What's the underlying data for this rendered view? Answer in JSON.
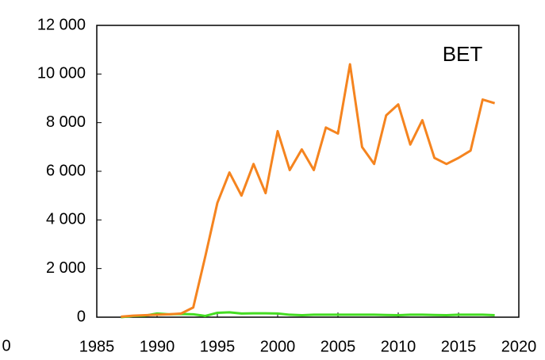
{
  "chart_data": {
    "type": "line",
    "annotation": "BET",
    "clipped_label": "0",
    "x": [
      1987,
      1988,
      1989,
      1990,
      1991,
      1992,
      1993,
      1994,
      1995,
      1996,
      1997,
      1998,
      1999,
      2000,
      2001,
      2002,
      2003,
      2004,
      2005,
      2006,
      2007,
      2008,
      2009,
      2010,
      2011,
      2012,
      2013,
      2014,
      2015,
      2016,
      2017,
      2018
    ],
    "series": [
      {
        "color": "#f5841f",
        "values": [
          20,
          60,
          80,
          100,
          120,
          150,
          400,
          2500,
          4700,
          5950,
          5000,
          6300,
          5100,
          7650,
          6050,
          6900,
          6050,
          7800,
          7550,
          10400,
          7000,
          6300,
          8300,
          8750,
          7100,
          8100,
          6550,
          6300,
          6550,
          6850,
          8950,
          8800
        ]
      },
      {
        "color": "#44dd22",
        "values": [
          0,
          50,
          60,
          150,
          120,
          130,
          120,
          50,
          180,
          200,
          150,
          160,
          160,
          150,
          100,
          80,
          100,
          100,
          100,
          100,
          100,
          100,
          90,
          80,
          100,
          100,
          90,
          80,
          100,
          100,
          100,
          80
        ]
      }
    ],
    "xlim": [
      1985,
      2020
    ],
    "xticks": [
      1985,
      1990,
      1995,
      2000,
      2005,
      2010,
      2015,
      2020
    ],
    "ylim": [
      0,
      12000
    ],
    "yticks": [
      0,
      {
        "value": 2000,
        "label": "2 000"
      },
      {
        "value": 4000,
        "label": "4 000"
      },
      {
        "value": 6000,
        "label": "6 000"
      },
      {
        "value": 8000,
        "label": "8 000"
      },
      {
        "value": 10000,
        "label": "10 000"
      },
      {
        "value": 12000,
        "label": "12 000"
      }
    ]
  }
}
